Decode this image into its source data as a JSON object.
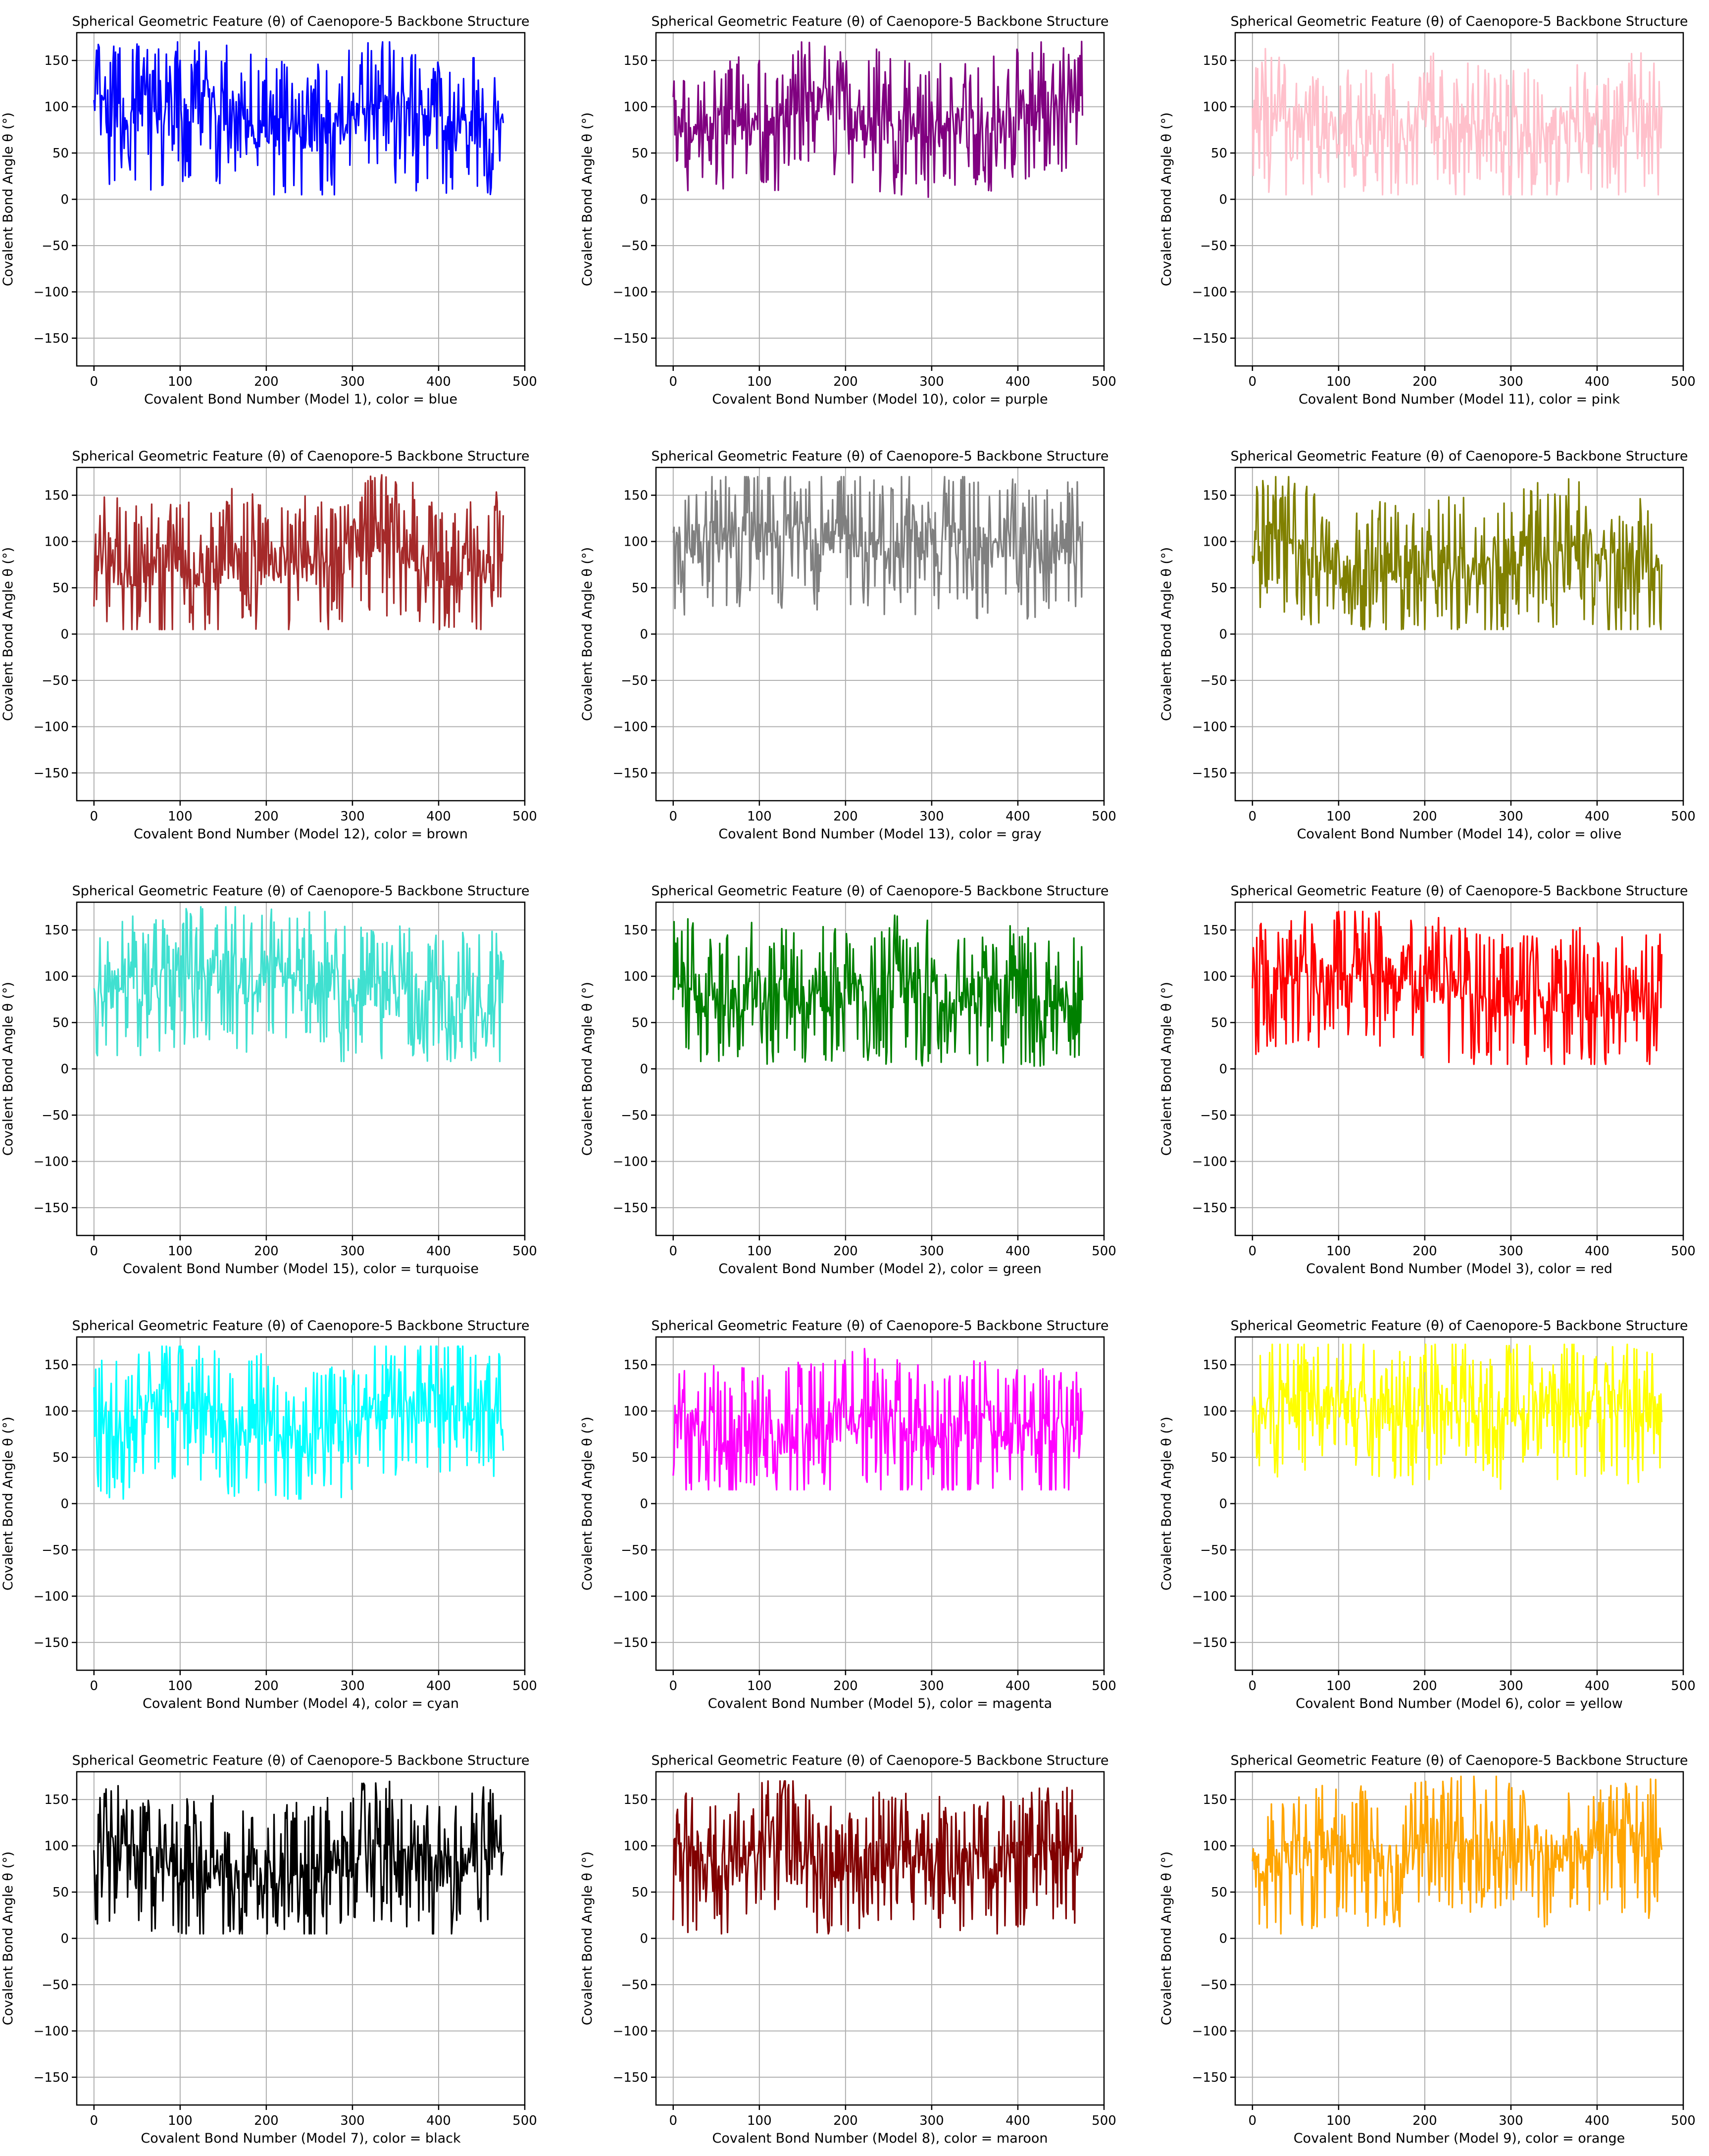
{
  "chart_data": [
    {
      "type": "line",
      "title": "Spherical Geometric Feature (θ) of Caenopore-5 Backbone Structure",
      "xlabel": "Covalent Bond Number (Model 1), color = blue",
      "ylabel": "Covalent Bond Angle θ (°)",
      "color": "#0000ff",
      "seed": 1,
      "xlim": [
        -20,
        500
      ],
      "ylim": [
        -180,
        180
      ],
      "xticks": [
        0,
        100,
        200,
        300,
        400,
        500
      ],
      "yticks": [
        -150,
        -100,
        -50,
        0,
        50,
        100,
        150
      ],
      "grid": true,
      "n_points": 476,
      "y_range": [
        5,
        170
      ],
      "y_mean": 90
    },
    {
      "type": "line",
      "title": "Spherical Geometric Feature (θ) of Caenopore-5 Backbone Structure",
      "xlabel": "Covalent Bond Number (Model 10), color = purple",
      "ylabel": "Covalent Bond Angle θ (°)",
      "color": "#800080",
      "seed": 10,
      "xlim": [
        -20,
        500
      ],
      "ylim": [
        -180,
        180
      ],
      "xticks": [
        0,
        100,
        200,
        300,
        400,
        500
      ],
      "yticks": [
        -150,
        -100,
        -50,
        0,
        50,
        100,
        150
      ],
      "grid": true,
      "n_points": 476,
      "y_range": [
        2,
        172
      ],
      "y_mean": 90
    },
    {
      "type": "line",
      "title": "Spherical Geometric Feature (θ) of Caenopore-5 Backbone Structure",
      "xlabel": "Covalent Bond Number (Model 11), color = pink",
      "ylabel": "Covalent Bond Angle θ (°)",
      "color": "#ffc0cb",
      "seed": 11,
      "xlim": [
        -20,
        500
      ],
      "ylim": [
        -180,
        180
      ],
      "xticks": [
        0,
        100,
        200,
        300,
        400,
        500
      ],
      "yticks": [
        -150,
        -100,
        -50,
        0,
        50,
        100,
        150
      ],
      "grid": true,
      "n_points": 476,
      "y_range": [
        5,
        178
      ],
      "y_mean": 90
    },
    {
      "type": "line",
      "title": "Spherical Geometric Feature (θ) of Caenopore-5 Backbone Structure",
      "xlabel": "Covalent Bond Number (Model 12), color = brown",
      "ylabel": "Covalent Bond Angle θ (°)",
      "color": "#a52a2a",
      "seed": 12,
      "xlim": [
        -20,
        500
      ],
      "ylim": [
        -180,
        180
      ],
      "xticks": [
        0,
        100,
        200,
        300,
        400,
        500
      ],
      "yticks": [
        -150,
        -100,
        -50,
        0,
        50,
        100,
        150
      ],
      "grid": true,
      "n_points": 476,
      "y_range": [
        5,
        172
      ],
      "y_mean": 90
    },
    {
      "type": "line",
      "title": "Spherical Geometric Feature (θ) of Caenopore-5 Backbone Structure",
      "xlabel": "Covalent Bond Number (Model 13), color = gray",
      "ylabel": "Covalent Bond Angle θ (°)",
      "color": "#808080",
      "seed": 13,
      "xlim": [
        -20,
        500
      ],
      "ylim": [
        -180,
        180
      ],
      "xticks": [
        0,
        100,
        200,
        300,
        400,
        500
      ],
      "yticks": [
        -150,
        -100,
        -50,
        0,
        50,
        100,
        150
      ],
      "grid": true,
      "n_points": 476,
      "y_range": [
        10,
        170
      ],
      "y_mean": 90
    },
    {
      "type": "line",
      "title": "Spherical Geometric Feature (θ) of Caenopore-5 Backbone Structure",
      "xlabel": "Covalent Bond Number (Model 14), color = olive",
      "ylabel": "Covalent Bond Angle θ (°)",
      "color": "#808000",
      "seed": 14,
      "xlim": [
        -20,
        500
      ],
      "ylim": [
        -180,
        180
      ],
      "xticks": [
        0,
        100,
        200,
        300,
        400,
        500
      ],
      "yticks": [
        -150,
        -100,
        -50,
        0,
        50,
        100,
        150
      ],
      "grid": true,
      "n_points": 476,
      "y_range": [
        5,
        170
      ],
      "y_mean": 90
    },
    {
      "type": "line",
      "title": "Spherical Geometric Feature (θ) of Caenopore-5 Backbone Structure",
      "xlabel": "Covalent Bond Number (Model 15), color = turquoise",
      "ylabel": "Covalent Bond Angle θ (°)",
      "color": "#40e0d0",
      "seed": 15,
      "xlim": [
        -20,
        500
      ],
      "ylim": [
        -180,
        180
      ],
      "xticks": [
        0,
        100,
        200,
        300,
        400,
        500
      ],
      "yticks": [
        -150,
        -100,
        -50,
        0,
        50,
        100,
        150
      ],
      "grid": true,
      "n_points": 476,
      "y_range": [
        8,
        175
      ],
      "y_mean": 90
    },
    {
      "type": "line",
      "title": "Spherical Geometric Feature (θ) of Caenopore-5 Backbone Structure",
      "xlabel": "Covalent Bond Number (Model 2), color = green",
      "ylabel": "Covalent Bond Angle θ (°)",
      "color": "#008000",
      "seed": 2,
      "xlim": [
        -20,
        500
      ],
      "ylim": [
        -180,
        180
      ],
      "xticks": [
        0,
        100,
        200,
        300,
        400,
        500
      ],
      "yticks": [
        -150,
        -100,
        -50,
        0,
        50,
        100,
        150
      ],
      "grid": true,
      "n_points": 476,
      "y_range": [
        3,
        172
      ],
      "y_mean": 90
    },
    {
      "type": "line",
      "title": "Spherical Geometric Feature (θ) of Caenopore-5 Backbone Structure",
      "xlabel": "Covalent Bond Number (Model 3), color = red",
      "ylabel": "Covalent Bond Angle θ (°)",
      "color": "#ff0000",
      "seed": 3,
      "xlim": [
        -20,
        500
      ],
      "ylim": [
        -180,
        180
      ],
      "xticks": [
        0,
        100,
        200,
        300,
        400,
        500
      ],
      "yticks": [
        -150,
        -100,
        -50,
        0,
        50,
        100,
        150
      ],
      "grid": true,
      "n_points": 476,
      "y_range": [
        5,
        170
      ],
      "y_mean": 90
    },
    {
      "type": "line",
      "title": "Spherical Geometric Feature (θ) of Caenopore-5 Backbone Structure",
      "xlabel": "Covalent Bond Number (Model 4), color = cyan",
      "ylabel": "Covalent Bond Angle θ (°)",
      "color": "#00ffff",
      "seed": 4,
      "xlim": [
        -20,
        500
      ],
      "ylim": [
        -180,
        180
      ],
      "xticks": [
        0,
        100,
        200,
        300,
        400,
        500
      ],
      "yticks": [
        -150,
        -100,
        -50,
        0,
        50,
        100,
        150
      ],
      "grid": true,
      "n_points": 476,
      "y_range": [
        5,
        170
      ],
      "y_mean": 90
    },
    {
      "type": "line",
      "title": "Spherical Geometric Feature (θ) of Caenopore-5 Backbone Structure",
      "xlabel": "Covalent Bond Number (Model 5), color = magenta",
      "ylabel": "Covalent Bond Angle θ (°)",
      "color": "#ff00ff",
      "seed": 5,
      "xlim": [
        -20,
        500
      ],
      "ylim": [
        -180,
        180
      ],
      "xticks": [
        0,
        100,
        200,
        300,
        400,
        500
      ],
      "yticks": [
        -150,
        -100,
        -50,
        0,
        50,
        100,
        150
      ],
      "grid": true,
      "n_points": 476,
      "y_range": [
        15,
        170
      ],
      "y_mean": 90
    },
    {
      "type": "line",
      "title": "Spherical Geometric Feature (θ) of Caenopore-5 Backbone Structure",
      "xlabel": "Covalent Bond Number (Model 6), color = yellow",
      "ylabel": "Covalent Bond Angle θ (°)",
      "color": "#ffff00",
      "seed": 6,
      "xlim": [
        -20,
        500
      ],
      "ylim": [
        -180,
        180
      ],
      "xticks": [
        0,
        100,
        200,
        300,
        400,
        500
      ],
      "yticks": [
        -150,
        -100,
        -50,
        0,
        50,
        100,
        150
      ],
      "grid": true,
      "n_points": 476,
      "y_range": [
        15,
        172
      ],
      "y_mean": 90
    },
    {
      "type": "line",
      "title": "Spherical Geometric Feature (θ) of Caenopore-5 Backbone Structure",
      "xlabel": "Covalent Bond Number (Model 7), color = black",
      "ylabel": "Covalent Bond Angle θ (°)",
      "color": "#000000",
      "seed": 7,
      "xlim": [
        -20,
        500
      ],
      "ylim": [
        -180,
        180
      ],
      "xticks": [
        0,
        100,
        200,
        300,
        400,
        500
      ],
      "yticks": [
        -150,
        -100,
        -50,
        0,
        50,
        100,
        150
      ],
      "grid": true,
      "n_points": 476,
      "y_range": [
        5,
        172
      ],
      "y_mean": 90
    },
    {
      "type": "line",
      "title": "Spherical Geometric Feature (θ) of Caenopore-5 Backbone Structure",
      "xlabel": "Covalent Bond Number (Model 8), color = maroon",
      "ylabel": "Covalent Bond Angle θ (°)",
      "color": "#800000",
      "seed": 8,
      "xlim": [
        -20,
        500
      ],
      "ylim": [
        -180,
        180
      ],
      "xticks": [
        0,
        100,
        200,
        300,
        400,
        500
      ],
      "yticks": [
        -150,
        -100,
        -50,
        0,
        50,
        100,
        150
      ],
      "grid": true,
      "n_points": 476,
      "y_range": [
        5,
        170
      ],
      "y_mean": 90
    },
    {
      "type": "line",
      "title": "Spherical Geometric Feature (θ) of Caenopore-5 Backbone Structure",
      "xlabel": "Covalent Bond Number (Model 9), color = orange",
      "ylabel": "Covalent Bond Angle θ (°)",
      "color": "#ffa500",
      "seed": 9,
      "xlim": [
        -20,
        500
      ],
      "ylim": [
        -180,
        180
      ],
      "xticks": [
        0,
        100,
        200,
        300,
        400,
        500
      ],
      "yticks": [
        -150,
        -100,
        -50,
        0,
        50,
        100,
        150
      ],
      "grid": true,
      "n_points": 476,
      "y_range": [
        5,
        175
      ],
      "y_mean": 90
    }
  ]
}
